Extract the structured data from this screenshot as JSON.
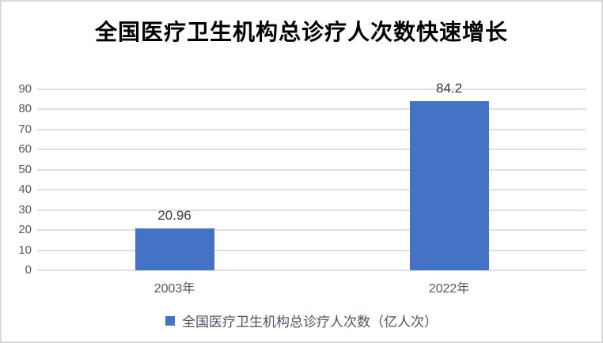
{
  "frame": {
    "background": "#FFFFFF",
    "border_color": "#D9D9D9"
  },
  "chart_data": {
    "type": "bar",
    "title": "全国医疗卫生机构总诊疗人次数快速增长",
    "categories": [
      "2003年",
      "2022年"
    ],
    "series": [
      {
        "name": "全国医疗卫生机构总诊疗人次数（亿人次）",
        "values": [
          20.96,
          84.2
        ],
        "color": "#4472C4"
      }
    ],
    "value_labels": [
      "20.96",
      "84.2"
    ],
    "xlabel": "",
    "ylabel": "",
    "ylim": [
      0,
      90
    ],
    "yticks": [
      0,
      10,
      20,
      30,
      40,
      50,
      60,
      70,
      80,
      90
    ],
    "grid": true,
    "gridline_color": "#E0E0E0",
    "tick_label_color": "#595959",
    "data_label_color": "#3B3B3B",
    "title_color": "#000000",
    "legend_position": "bottom",
    "legend_text_color": "#4B5564"
  }
}
